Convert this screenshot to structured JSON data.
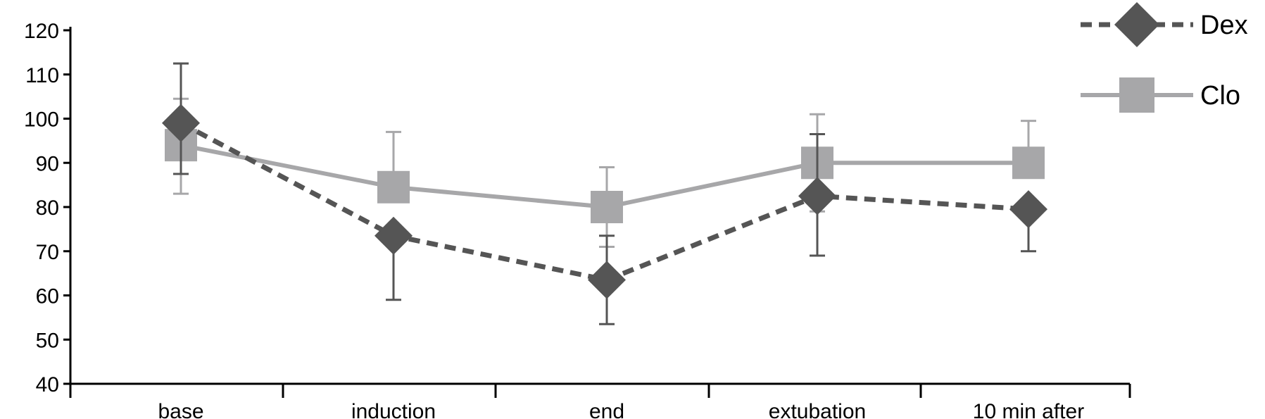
{
  "chart_data": {
    "type": "line",
    "categories": [
      "base",
      "induction",
      "end",
      "extubation",
      "10 min after"
    ],
    "ylim": [
      40,
      120
    ],
    "yticks": [
      40,
      50,
      60,
      70,
      80,
      90,
      100,
      110,
      120
    ],
    "grid": false,
    "legend_position": "top-right",
    "series": [
      {
        "name": "Dex",
        "values": [
          99,
          73.5,
          63.5,
          82.5,
          79.5
        ],
        "error_upper": [
          112.5,
          null,
          73.5,
          96.5,
          null
        ],
        "error_lower": [
          87.5,
          59,
          53.5,
          69,
          70
        ],
        "color": "#555555",
        "line_style": "dashed",
        "marker": "diamond"
      },
      {
        "name": "Clo",
        "values": [
          94,
          84.5,
          80,
          90,
          90
        ],
        "error_upper": [
          104.5,
          97,
          89,
          101,
          99.5
        ],
        "error_lower": [
          83,
          null,
          71,
          79,
          null
        ],
        "color": "#a7a7a9",
        "line_style": "solid",
        "marker": "square"
      }
    ]
  }
}
